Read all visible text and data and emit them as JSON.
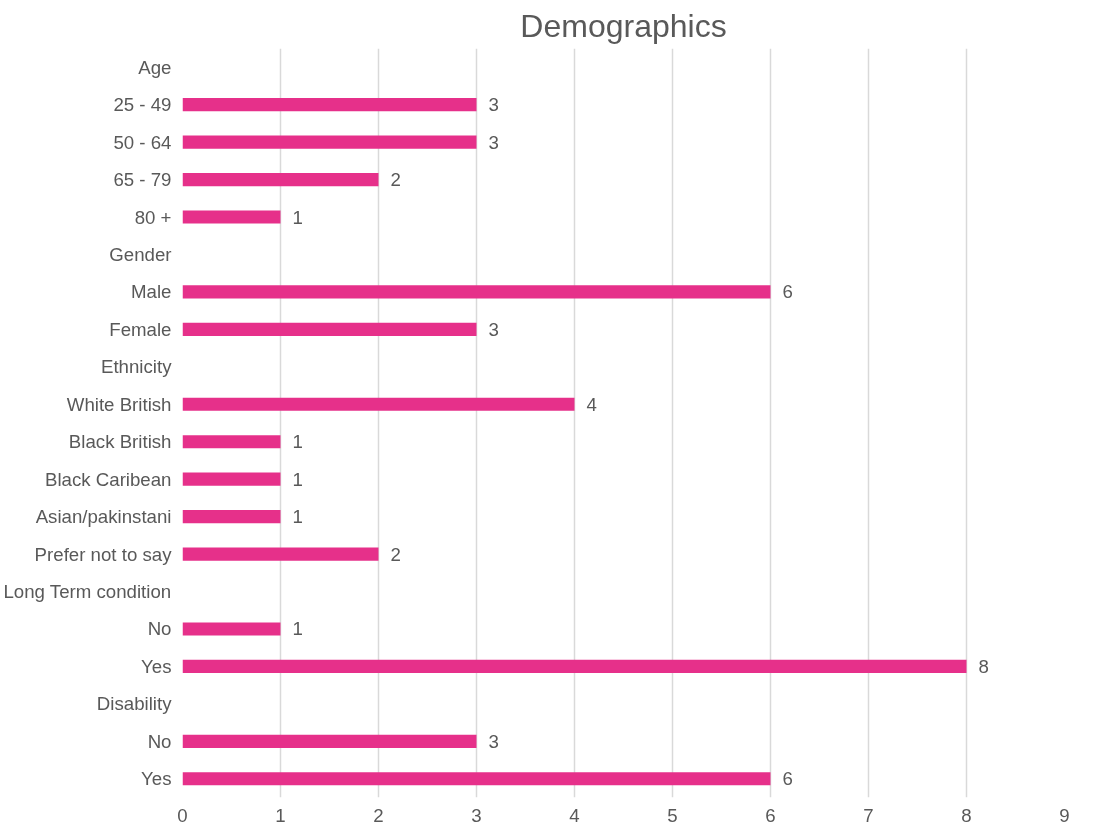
{
  "chart_data": {
    "type": "bar",
    "orientation": "horizontal",
    "title": "Demographics",
    "categories": [
      "Age",
      "25 - 49",
      "50 - 64",
      "65 - 79",
      "80 +",
      "Gender",
      "Male",
      "Female",
      "Ethnicity",
      "White British",
      "Black British",
      "Black Caribean",
      "Asian/pakinstani",
      "Prefer not to say",
      "Long Term condition",
      "No",
      "Yes",
      "Disability",
      "No",
      "Yes"
    ],
    "values": [
      null,
      3,
      3,
      2,
      1,
      null,
      6,
      3,
      null,
      4,
      1,
      1,
      1,
      2,
      null,
      1,
      8,
      null,
      3,
      6
    ],
    "color": "#e6308a",
    "xlim": [
      0,
      9
    ],
    "xticks": [
      0,
      1,
      2,
      3,
      4,
      5,
      6,
      7,
      8,
      9
    ],
    "grid": "x",
    "data_labels": true
  }
}
